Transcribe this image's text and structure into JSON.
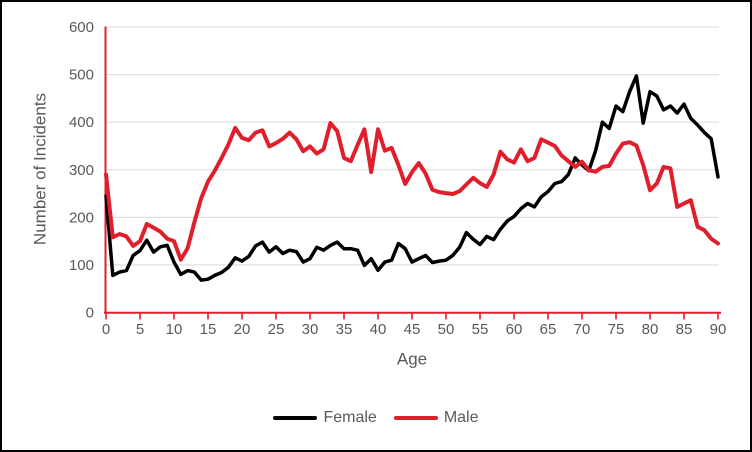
{
  "chart_data": {
    "type": "line",
    "title": "",
    "xlabel": "Age",
    "ylabel": "Number of Incidents",
    "x_range": [
      0,
      90
    ],
    "y_range": [
      0,
      600
    ],
    "x_ticks": [
      0,
      5,
      10,
      15,
      20,
      25,
      30,
      35,
      40,
      45,
      50,
      55,
      60,
      65,
      70,
      75,
      80,
      85,
      90
    ],
    "y_ticks": [
      0,
      100,
      200,
      300,
      400,
      500,
      600
    ],
    "grid": "horizontal-only",
    "legend_position": "bottom-center",
    "axis_color": "#e01e2c",
    "tick_label_color": "#595959",
    "gridline_color": "#d9d9d9",
    "ages": [
      0,
      1,
      2,
      3,
      4,
      5,
      6,
      7,
      8,
      9,
      10,
      11,
      12,
      13,
      14,
      15,
      16,
      17,
      18,
      19,
      20,
      21,
      22,
      23,
      24,
      25,
      26,
      27,
      28,
      29,
      30,
      31,
      32,
      33,
      34,
      35,
      36,
      37,
      38,
      39,
      40,
      41,
      42,
      43,
      44,
      45,
      46,
      47,
      48,
      49,
      50,
      51,
      52,
      53,
      54,
      55,
      56,
      57,
      58,
      59,
      60,
      61,
      62,
      63,
      64,
      65,
      66,
      67,
      68,
      69,
      70,
      71,
      72,
      73,
      74,
      75,
      76,
      77,
      78,
      79,
      80,
      81,
      82,
      83,
      84,
      85,
      86,
      87,
      88,
      89,
      90
    ],
    "series": [
      {
        "name": "Female",
        "color": "#000000",
        "stroke_width": 3.5,
        "values": [
          245,
          78,
          85,
          88,
          120,
          130,
          152,
          127,
          138,
          141,
          106,
          80,
          88,
          85,
          68,
          70,
          78,
          84,
          95,
          115,
          108,
          118,
          140,
          148,
          127,
          138,
          124,
          131,
          128,
          106,
          113,
          137,
          131,
          141,
          148,
          134,
          134,
          131,
          99,
          113,
          89,
          106,
          110,
          145,
          134,
          106,
          113,
          120,
          105,
          108,
          110,
          120,
          137,
          168,
          154,
          143,
          160,
          153,
          175,
          192,
          202,
          218,
          229,
          222,
          243,
          254,
          271,
          275,
          290,
          325,
          310,
          298,
          340,
          400,
          387,
          434,
          422,
          464,
          497,
          398,
          464,
          455,
          426,
          434,
          419,
          438,
          408,
          394,
          378,
          365,
          285
        ]
      },
      {
        "name": "Male",
        "color": "#e01e2c",
        "stroke_width": 4,
        "values": [
          290,
          158,
          165,
          160,
          140,
          150,
          186,
          178,
          170,
          155,
          150,
          111,
          135,
          190,
          240,
          275,
          298,
          325,
          353,
          388,
          367,
          362,
          378,
          383,
          349,
          356,
          365,
          378,
          364,
          339,
          349,
          334,
          343,
          398,
          381,
          325,
          318,
          352,
          385,
          295,
          385,
          340,
          346,
          310,
          270,
          295,
          314,
          292,
          258,
          253,
          251,
          249,
          255,
          269,
          283,
          272,
          264,
          290,
          338,
          322,
          315,
          343,
          318,
          325,
          364,
          357,
          350,
          330,
          318,
          306,
          317,
          299,
          296,
          306,
          308,
          334,
          355,
          358,
          351,
          310,
          257,
          271,
          306,
          303,
          222,
          229,
          236,
          180,
          173,
          155,
          145
        ]
      }
    ]
  }
}
